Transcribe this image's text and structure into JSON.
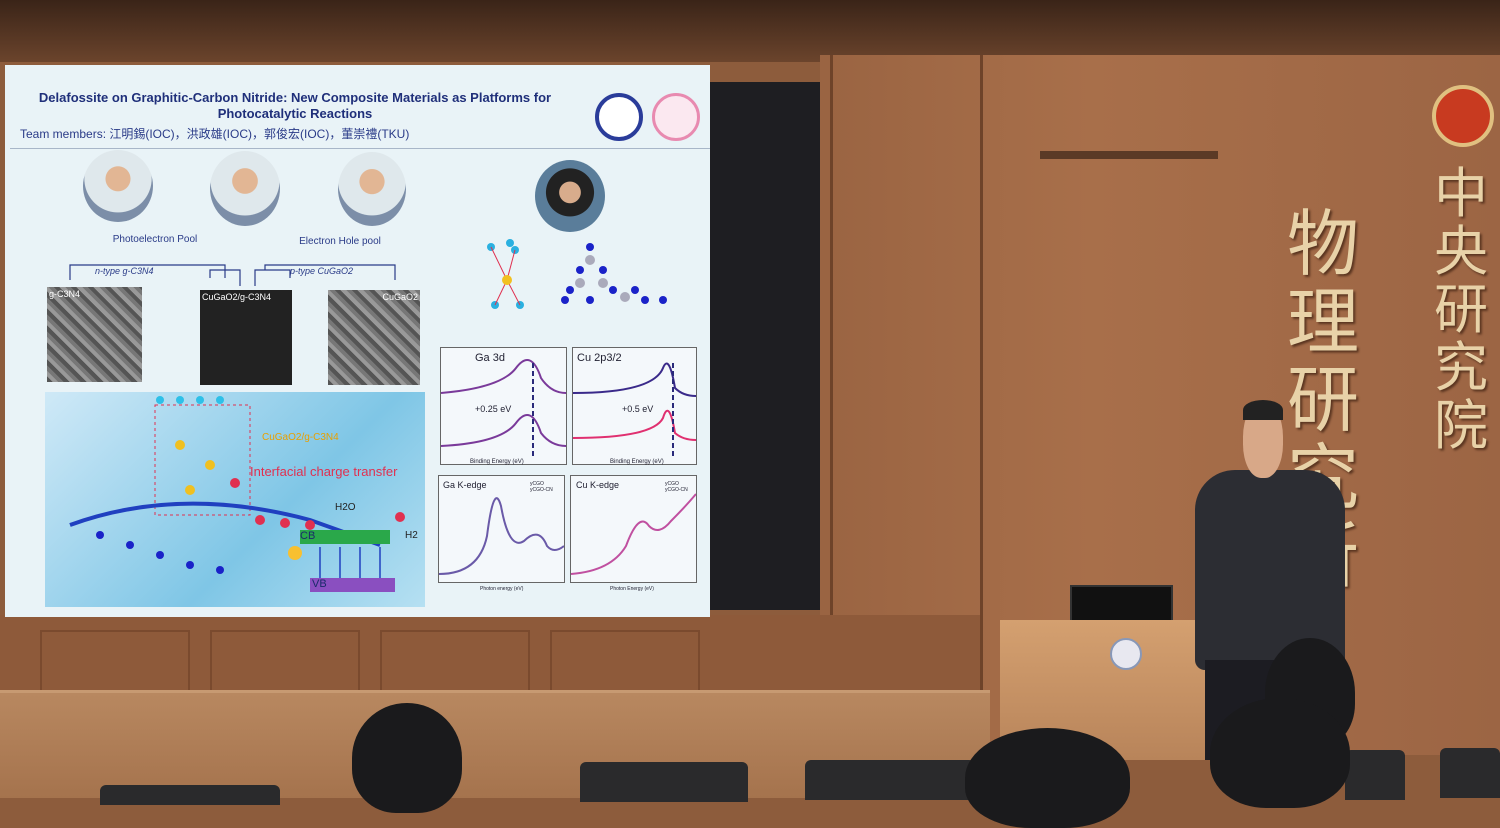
{
  "slide": {
    "title_line1": "Delafossite on Graphitic-Carbon Nitride: New Composite Materials as Platforms for",
    "title_line2": "Photocatalytic Reactions",
    "team": "Team members:  江明錫(IOC)，洪政雄(IOC)，郭俊宏(IOC)，董崇禮(TKU)",
    "photoelectron_pool": "Photoelectron Pool",
    "electron_hole_pool": "Electron Hole pool",
    "n_type": "n-type g-C3N4",
    "p_type": "p-type CuGaO2",
    "sem_labels": [
      "g-C3N4",
      "CuGaO2/g-C3N4",
      "CuGaO2"
    ],
    "scheme": {
      "composite": "CuGaO2/g-C3N4",
      "interfacial": "Interfacial charge transfer",
      "h2o": "H2O",
      "h2": "H2",
      "cb": "CB",
      "vb": "VB"
    },
    "xps": {
      "ga_title": "Ga 3d",
      "ga_shift": "+0.25 eV",
      "cu_title": "Cu 2p3/2",
      "cu_shift": "+0.5 eV",
      "xlabel": "Binding Energy (eV)"
    },
    "xas": {
      "ga_title": "Ga K-edge",
      "cu_title": "Cu K-edge",
      "legend": [
        "yCGO",
        "yCGO-CN"
      ],
      "xlabel_ga": "Photon energy (eV)",
      "xlabel_cu": "Photon Energy (eV)"
    },
    "colors": {
      "title": "#1f2f7a",
      "accent_red": "#e0304a",
      "cb": "#2aa84a",
      "vb": "#8a4fc0"
    }
  },
  "wall": {
    "sign_left": [
      "物",
      "理",
      "研",
      "究",
      "所"
    ],
    "sign_right": [
      "中",
      "央",
      "研",
      "究",
      "院"
    ]
  }
}
